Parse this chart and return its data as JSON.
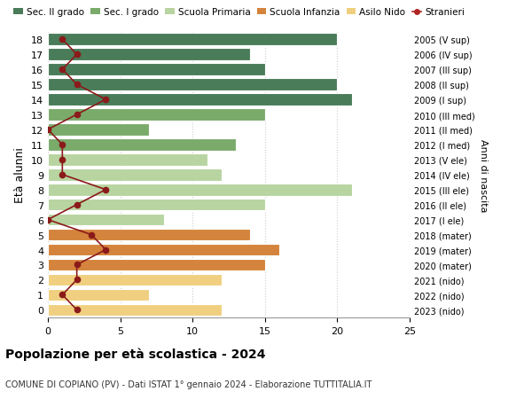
{
  "ages": [
    18,
    17,
    16,
    15,
    14,
    13,
    12,
    11,
    10,
    9,
    8,
    7,
    6,
    5,
    4,
    3,
    2,
    1,
    0
  ],
  "years": [
    "2005 (V sup)",
    "2006 (IV sup)",
    "2007 (III sup)",
    "2008 (II sup)",
    "2009 (I sup)",
    "2010 (III med)",
    "2011 (II med)",
    "2012 (I med)",
    "2013 (V ele)",
    "2014 (IV ele)",
    "2015 (III ele)",
    "2016 (II ele)",
    "2017 (I ele)",
    "2018 (mater)",
    "2019 (mater)",
    "2020 (mater)",
    "2021 (nido)",
    "2022 (nido)",
    "2023 (nido)"
  ],
  "bar_values": [
    20,
    14,
    15,
    20,
    21,
    15,
    7,
    13,
    11,
    12,
    21,
    15,
    8,
    14,
    16,
    15,
    12,
    7,
    12
  ],
  "stranieri": [
    1,
    2,
    1,
    2,
    4,
    2,
    0,
    1,
    1,
    1,
    4,
    2,
    0,
    3,
    4,
    2,
    2,
    1,
    2
  ],
  "bar_colors": [
    "#4a7c59",
    "#4a7c59",
    "#4a7c59",
    "#4a7c59",
    "#4a7c59",
    "#7aab6b",
    "#7aab6b",
    "#7aab6b",
    "#b8d4a0",
    "#b8d4a0",
    "#b8d4a0",
    "#b8d4a0",
    "#b8d4a0",
    "#d4843c",
    "#d4843c",
    "#d4843c",
    "#f0d080",
    "#f0d080",
    "#f0d080"
  ],
  "legend_labels": [
    "Sec. II grado",
    "Sec. I grado",
    "Scuola Primaria",
    "Scuola Infanzia",
    "Asilo Nido",
    "Stranieri"
  ],
  "legend_colors": [
    "#4a7c59",
    "#7aab6b",
    "#b8d4a0",
    "#d4843c",
    "#f0d080",
    "#b22222"
  ],
  "title": "Popolazione per à scolastica - 2024",
  "title_bold": "Popolazione per età scolastica - 2024",
  "subtitle": "COMUNE DI COPIANO (PV) - Dati ISTAT 1° gennaio 2024 - Elaborazione TUTTITALIA.IT",
  "ylabel": "Età alunni",
  "right_label": "Anni di nascita",
  "xlim": [
    0,
    25
  ],
  "bar_height": 0.8,
  "stranieri_color": "#8b1a1a",
  "background_color": "#ffffff"
}
